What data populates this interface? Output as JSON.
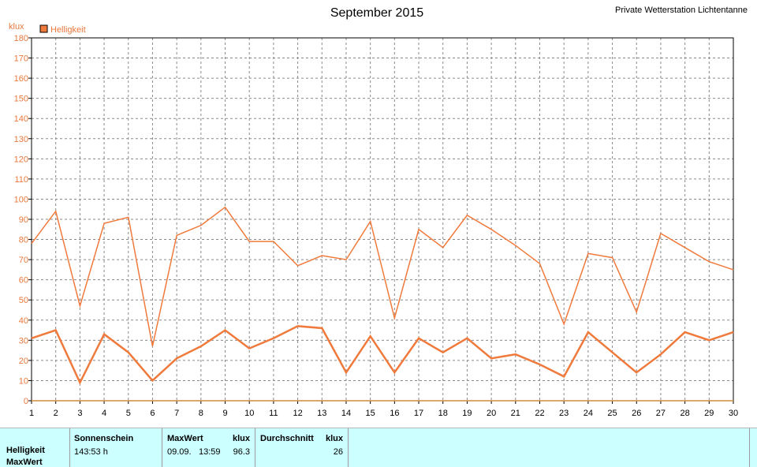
{
  "header": {
    "title": "September 2015",
    "station": "Private Wetterstation Lichtentanne"
  },
  "chart_data": {
    "type": "line",
    "title": "September 2015",
    "ylabel": "klux",
    "ylim": [
      0,
      180
    ],
    "yticks": [
      0,
      10,
      20,
      30,
      40,
      50,
      60,
      70,
      80,
      90,
      100,
      110,
      120,
      130,
      140,
      150,
      160,
      170,
      180
    ],
    "x": [
      1,
      2,
      3,
      4,
      5,
      6,
      7,
      8,
      9,
      10,
      11,
      12,
      13,
      14,
      15,
      16,
      17,
      18,
      19,
      20,
      21,
      22,
      23,
      24,
      25,
      26,
      27,
      28,
      29,
      30
    ],
    "xlim": [
      1,
      30
    ],
    "grid": true,
    "legend": "top-left",
    "colors": {
      "series": "#f07a3c",
      "zero_line": "#d08a3a",
      "grid": "#8a8a8a",
      "axis_text": "#e8783c"
    },
    "series": [
      {
        "name": "Helligkeit",
        "role": "max",
        "width": 1.5,
        "values": [
          78,
          94,
          47,
          88,
          91,
          27,
          82,
          87,
          96,
          79,
          79,
          67,
          72,
          70,
          89,
          41,
          85,
          76,
          92,
          85,
          77,
          68,
          38,
          73,
          71,
          44,
          83,
          76,
          69,
          65
        ]
      },
      {
        "role": "avg",
        "width": 2.5,
        "values": [
          31,
          35,
          9,
          33,
          24,
          10,
          21,
          27,
          35,
          26,
          31,
          37,
          36,
          14,
          32,
          14,
          31,
          24,
          31,
          21,
          23,
          18,
          12,
          34,
          24,
          14,
          23,
          34,
          30,
          34
        ]
      }
    ]
  },
  "legend": {
    "label": "Helligkeit",
    "swatch": "#f07a3c"
  },
  "summary": {
    "row_labels": [
      "Helligkeit",
      "MaxWert"
    ],
    "sunshine": {
      "header": "Sonnenschein",
      "value": "143:53 h"
    },
    "maxwert": {
      "header": "MaxWert",
      "unit": "klux",
      "date": "09.09.",
      "time": "13:59",
      "value": "96.3"
    },
    "average": {
      "header": "Durchschnitt",
      "unit": "klux",
      "value": "26"
    }
  }
}
